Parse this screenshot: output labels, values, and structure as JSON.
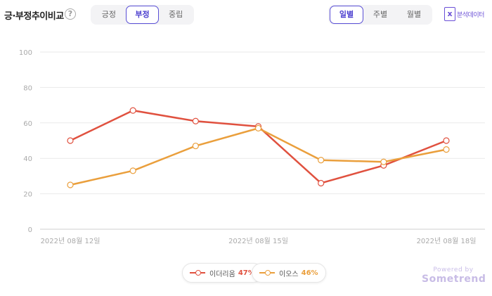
{
  "header": {
    "title": "긍·부정추이비교",
    "help": "?",
    "sentiment_options": [
      "긍정",
      "부정",
      "중립"
    ],
    "sentiment_selected": 1,
    "period_options": [
      "일별",
      "주별",
      "월별"
    ],
    "period_selected": 0,
    "analysis_label": "분석데이터",
    "analysis_icon": "x"
  },
  "chart_data": {
    "type": "line",
    "x": [
      "2022-08-12",
      "2022-08-13",
      "2022-08-14",
      "2022-08-15",
      "2022-08-16",
      "2022-08-17",
      "2022-08-18"
    ],
    "x_tick_labels": [
      "2022년 08월 12일",
      "2022년 08월 15일",
      "2022년 08월 18일"
    ],
    "x_tick_indices": [
      0,
      3,
      6
    ],
    "ylim": [
      0,
      100
    ],
    "yticks": [
      0,
      20,
      40,
      60,
      80,
      100
    ],
    "grid": true,
    "legend_position": "bottom",
    "series": [
      {
        "name": "이더리움",
        "share": "47%",
        "color": "#e0513f",
        "values": [
          50,
          67,
          61,
          58,
          26,
          36,
          50
        ]
      },
      {
        "name": "이오스",
        "share": "46%",
        "color": "#ea9f3c",
        "values": [
          25,
          33,
          47,
          57,
          39,
          38,
          45
        ]
      }
    ]
  },
  "footer": {
    "powered_by": "Powered by",
    "brand": "Sometrend"
  }
}
